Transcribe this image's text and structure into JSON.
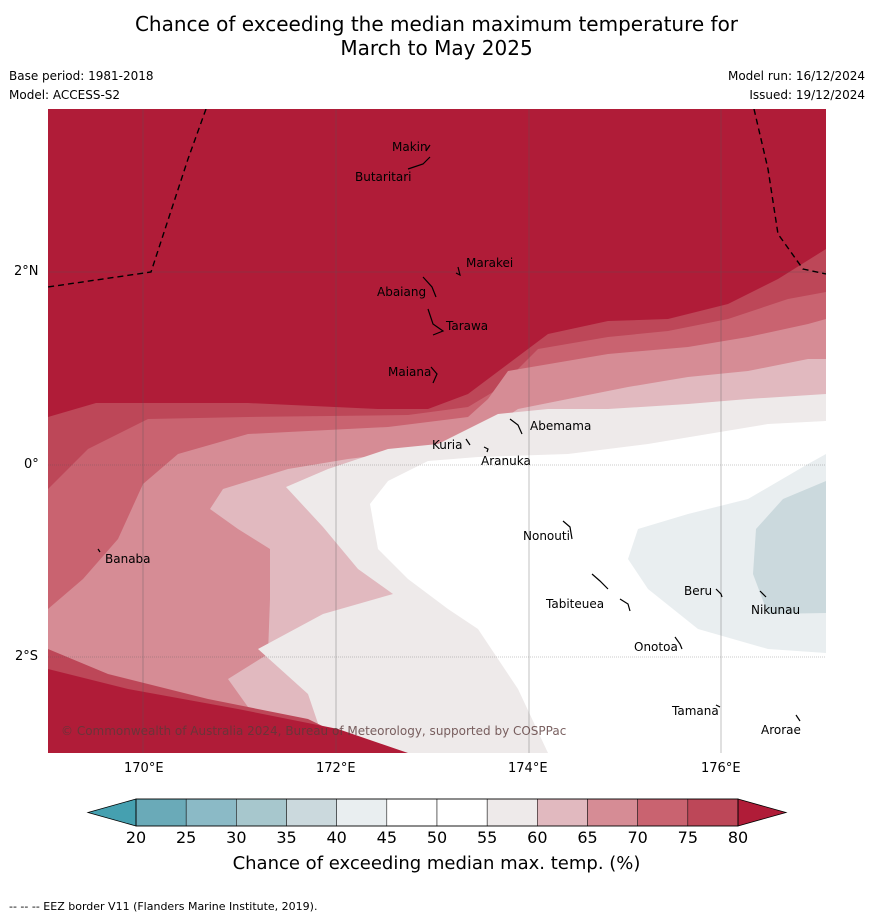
{
  "title_line1": "Chance of exceeding the median maximum temperature for",
  "title_line2": "March to May 2025",
  "meta": {
    "base_period": "Base period: 1981-2018",
    "model": "Model: ACCESS-S2",
    "model_run": "Model run: 16/12/2024",
    "issued": "Issued: 19/12/2024"
  },
  "axes": {
    "lon_labels": [
      "170°E",
      "172°E",
      "174°E",
      "176°E"
    ],
    "lat_labels": [
      "2°N",
      "0°",
      "2°S"
    ]
  },
  "places": {
    "makin": "Makin",
    "butaritari": "Butaritari",
    "marakei": "Marakei",
    "abaiang": "Abaiang",
    "tarawa": "Tarawa",
    "maiana": "Maiana",
    "abemama": "Abemama",
    "kuria": "Kuria",
    "aranuka": "Aranuka",
    "banaba": "Banaba",
    "nonouti": "Nonouti",
    "tabiteuea": "Tabiteuea",
    "beru": "Beru",
    "nikunau": "Nikunau",
    "onotoa": "Onotoa",
    "tamana": "Tamana",
    "arorae": "Arorae"
  },
  "copyright": "© Commonwealth of Australia 2024, Bureau of Meteorology, supported by COSPPac",
  "colorbar": {
    "ticks": [
      "20",
      "25",
      "30",
      "35",
      "40",
      "45",
      "50",
      "55",
      "60",
      "65",
      "70",
      "75",
      "80"
    ],
    "colors": [
      "#6aaab8",
      "#8bbac6",
      "#a7c7cd",
      "#cbd9dd",
      "#e9eef0",
      "#ffffff",
      "#ffffff",
      "#eeeaea",
      "#e1b9bf",
      "#d68c95",
      "#c96370",
      "#bd4758"
    ],
    "under_color": "#45a0b0",
    "over_color": "#b01c38",
    "title": "Chance of exceeding median max. temp. (%)"
  },
  "footnote": "--  --  -- EEZ border V11 (Flanders Marine Institute, 2019).",
  "map_colors": {
    "gt80": "#b01c38",
    "75_80": "#bd4758",
    "70_75": "#c96370",
    "65_70": "#d68c95",
    "60_65": "#e1b9bf",
    "55_60": "#eeeaea",
    "45_55": "#ffffff",
    "40_45": "#e9eef0",
    "35_40": "#cbd9dd"
  }
}
